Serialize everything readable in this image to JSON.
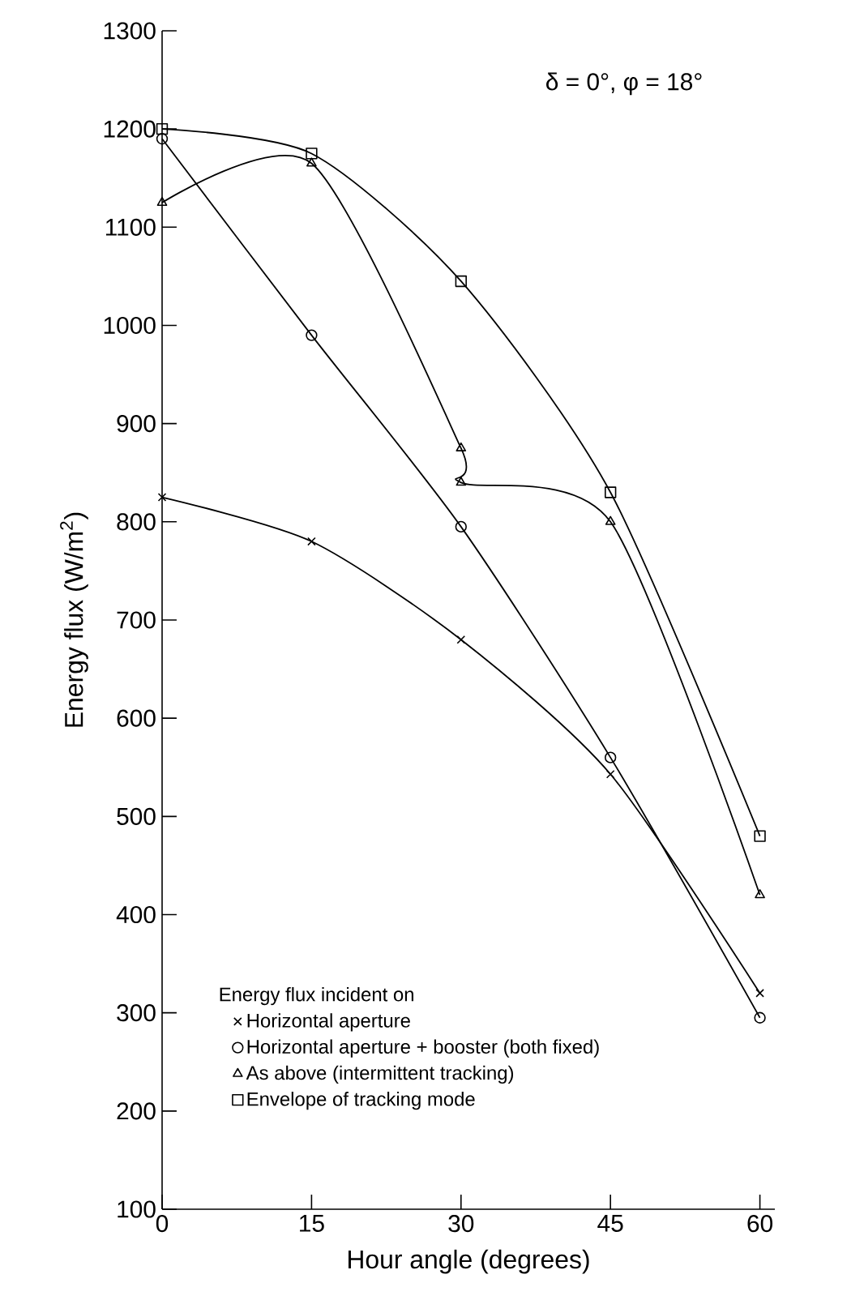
{
  "chart_data": {
    "type": "line",
    "xlabel": "Hour angle (degrees)",
    "ylabel": "Energy flux (W/m$^{2}$)",
    "legend_title": "Energy flux incident on",
    "annotations": [
      "δ = 0°, φ = 18°"
    ],
    "xlim": [
      0,
      61.5
    ],
    "ylim": [
      100,
      1300
    ],
    "xticks": [
      0,
      15,
      30,
      45,
      60
    ],
    "yticks": [
      100,
      200,
      300,
      400,
      500,
      600,
      700,
      800,
      900,
      1000,
      1100,
      1200,
      1300
    ],
    "grid": false,
    "legend": "bottom",
    "line_style": "solid",
    "series": [
      {
        "name": "Horizontal aperture",
        "color": "#000000",
        "marker": "cross",
        "x": [
          0,
          15,
          30,
          45,
          60
        ],
        "values": [
          825,
          780,
          680,
          543,
          320
        ]
      },
      {
        "name": "Horizontal aperture + booster (both fixed)",
        "color": "#000000",
        "marker": "circle",
        "x": [
          0,
          15,
          30,
          45,
          60
        ],
        "values": [
          1190,
          990,
          795,
          560,
          295
        ]
      },
      {
        "name": "As above (intermittent tracking)",
        "color": "#000000",
        "marker": "triangle",
        "x": [
          0,
          15,
          30,
          30,
          45,
          60
        ],
        "values": [
          1125,
          1165,
          875,
          840,
          800,
          420
        ]
      },
      {
        "name": "Envelope of tracking mode",
        "color": "#000000",
        "marker": "square",
        "x": [
          0,
          15,
          30,
          45,
          60
        ],
        "values": [
          1200,
          1175,
          1045,
          830,
          480
        ]
      }
    ]
  }
}
